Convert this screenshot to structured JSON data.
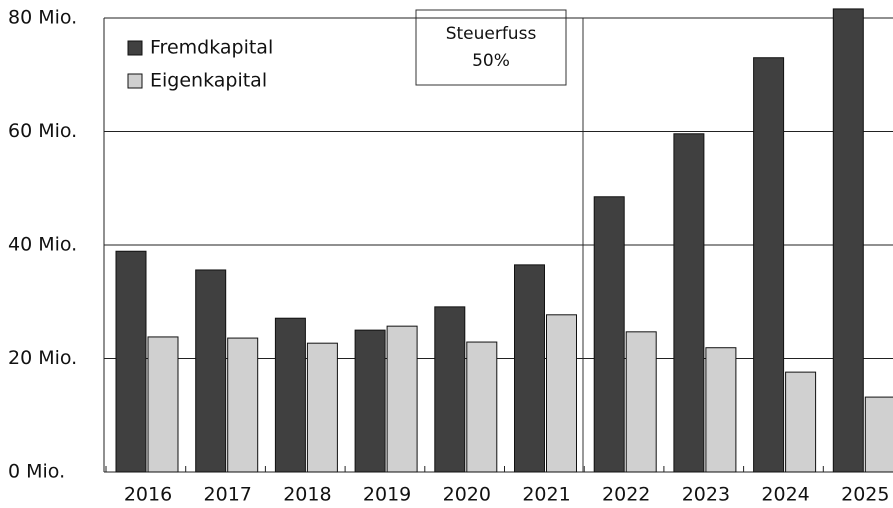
{
  "chart_data": {
    "type": "bar",
    "categories": [
      "2016",
      "2017",
      "2018",
      "2019",
      "2020",
      "2021",
      "2022",
      "2023",
      "2024",
      "2025"
    ],
    "series": [
      {
        "name": "Fremdkapital",
        "color": "#404040",
        "values": [
          38.9,
          35.6,
          27.1,
          25,
          29.1,
          36.5,
          48.5,
          59.6,
          73,
          81.6
        ]
      },
      {
        "name": "Eigenkapital",
        "color": "#d0d0d0",
        "values": [
          23.8,
          23.6,
          22.7,
          25.7,
          22.9,
          27.7,
          24.7,
          21.9,
          17.6,
          13.2
        ]
      }
    ],
    "annotation": [
      "Steuerfuss",
      "50%"
    ],
    "ylim": [
      0,
      80
    ],
    "yticks": [
      {
        "value": 0,
        "label": "0 Mio."
      },
      {
        "value": 20,
        "label": "20 Mio."
      },
      {
        "value": 40,
        "label": "40 Mio."
      },
      {
        "value": 60,
        "label": "60 Mio."
      },
      {
        "value": 80,
        "label": "80 Mio."
      }
    ],
    "grid": true,
    "legend": "upper left"
  }
}
